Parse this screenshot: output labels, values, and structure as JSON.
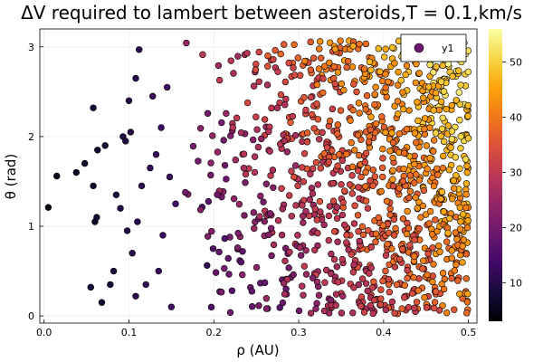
{
  "chart_data": {
    "type": "scatter",
    "title": "ΔV required to lambert between asteroids,T = 0.1,km/s",
    "xlabel": "ρ (AU)",
    "ylabel": "θ (rad)",
    "xlim": [
      -0.005,
      0.51
    ],
    "ylim": [
      -0.08,
      3.2
    ],
    "xticks": [
      0.0,
      0.1,
      0.2,
      0.3,
      0.4,
      0.5
    ],
    "xtick_labels": [
      "0.0",
      "0.1",
      "0.2",
      "0.3",
      "0.4",
      "0.5"
    ],
    "yticks": [
      0,
      1,
      2,
      3
    ],
    "ytick_labels": [
      "0",
      "1",
      "2",
      "3"
    ],
    "grid": true,
    "legend": {
      "position": "top-right",
      "entries": [
        "y1"
      ]
    },
    "colorbar": {
      "colormap": "inferno",
      "range": [
        3,
        56
      ],
      "ticks": [
        10,
        20,
        30,
        40,
        50
      ],
      "tick_labels": [
        "10",
        "20",
        "30",
        "40",
        "50"
      ]
    },
    "series": [
      {
        "name": "y1",
        "marker": "circle",
        "note": "color encodes ΔV (km/s); points sampled to approximate the visible cloud",
        "points": [
          [
            0.005,
            1.21,
            3.5
          ],
          [
            0.015,
            1.56,
            5.0
          ],
          [
            0.038,
            1.6,
            6.0
          ],
          [
            0.048,
            1.7,
            7.0
          ],
          [
            0.058,
            1.45,
            6.5
          ],
          [
            0.06,
            1.05,
            7.0
          ],
          [
            0.062,
            1.1,
            7.2
          ],
          [
            0.058,
            2.32,
            8.0
          ],
          [
            0.063,
            1.85,
            7.5
          ],
          [
            0.072,
            1.9,
            8.0
          ],
          [
            0.055,
            0.32,
            8.5
          ],
          [
            0.068,
            0.15,
            8.0
          ],
          [
            0.078,
            0.35,
            8.5
          ],
          [
            0.082,
            0.5,
            9.0
          ],
          [
            0.085,
            1.35,
            9.0
          ],
          [
            0.09,
            1.2,
            9.5
          ],
          [
            0.093,
            2.0,
            9.0
          ],
          [
            0.096,
            1.95,
            9.5
          ],
          [
            0.1,
            2.4,
            10.0
          ],
          [
            0.108,
            2.65,
            10.5
          ],
          [
            0.112,
            2.97,
            11.0
          ],
          [
            0.102,
            2.05,
            10.0
          ],
          [
            0.098,
            0.95,
            10.0
          ],
          [
            0.104,
            0.7,
            10.5
          ],
          [
            0.11,
            1.05,
            11.0
          ],
          [
            0.115,
            1.45,
            11.0
          ],
          [
            0.108,
            0.22,
            11.0
          ],
          [
            0.12,
            0.35,
            11.5
          ],
          [
            0.125,
            1.65,
            12.0
          ],
          [
            0.128,
            2.45,
            12.5
          ],
          [
            0.132,
            1.8,
            12.0
          ],
          [
            0.135,
            0.5,
            12.5
          ],
          [
            0.138,
            2.1,
            13.0
          ],
          [
            0.14,
            0.9,
            13.0
          ],
          [
            0.145,
            2.55,
            13.5
          ],
          [
            0.148,
            1.55,
            13.0
          ],
          [
            0.15,
            0.1,
            13.5
          ],
          [
            0.155,
            1.25,
            14.0
          ]
        ]
      }
    ]
  }
}
